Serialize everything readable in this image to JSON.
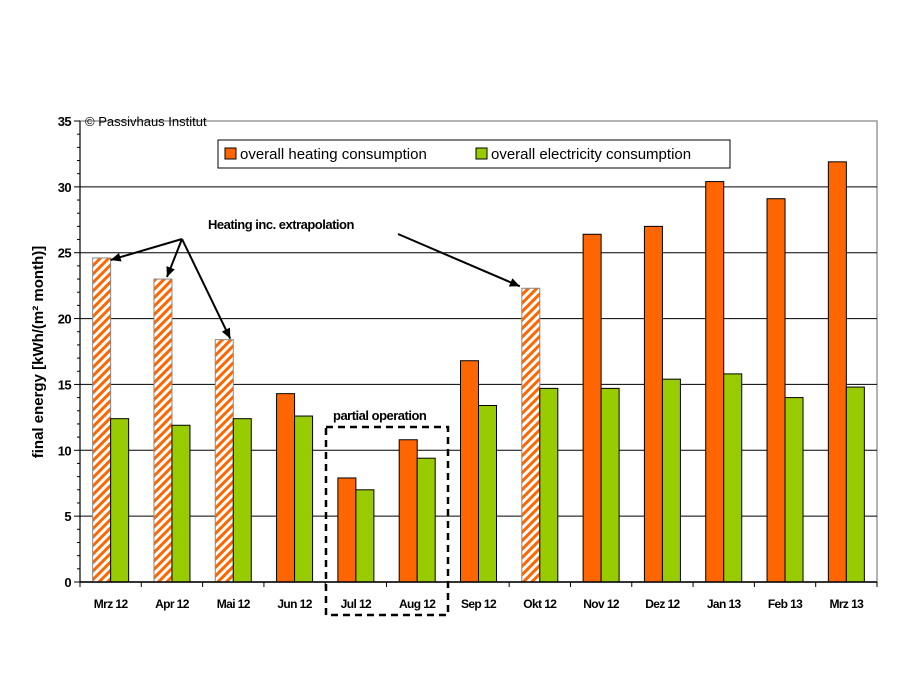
{
  "chart_data": {
    "type": "bar",
    "title": "",
    "copyright": "© Passivhaus Institut",
    "xlabel": "",
    "ylabel": "final energy [kWh/(m² month)]",
    "ylim": [
      0,
      35
    ],
    "yticks": [
      0,
      5,
      10,
      15,
      20,
      25,
      30,
      35
    ],
    "minor_tick_step": 1,
    "grid": true,
    "legend_position": "top-center",
    "categories": [
      "Mrz 12",
      "Apr 12",
      "Mai 12",
      "Jun 12",
      "Jul 12",
      "Aug 12",
      "Sep 12",
      "Okt 12",
      "Nov 12",
      "Dez 12",
      "Jan 13",
      "Feb 13",
      "Mrz 13"
    ],
    "series": [
      {
        "name": "overall heating consumption",
        "color": "#ff6600",
        "values": [
          24.6,
          23.0,
          18.4,
          14.3,
          7.9,
          10.8,
          16.8,
          22.3,
          26.4,
          27.0,
          30.4,
          29.1,
          31.9
        ],
        "extrapolated": [
          true,
          true,
          true,
          false,
          false,
          false,
          false,
          true,
          false,
          false,
          false,
          false,
          false
        ]
      },
      {
        "name": "overall electricity consumption",
        "color": "#99cc00",
        "values": [
          12.4,
          11.9,
          12.4,
          12.6,
          7.0,
          9.4,
          13.4,
          14.7,
          14.7,
          15.4,
          15.8,
          14.0,
          14.8
        ]
      }
    ],
    "annotations": [
      {
        "text": "Heating inc. extrapolation",
        "targets": [
          "Mrz 12",
          "Apr 12",
          "Mai 12",
          "Okt 12"
        ]
      },
      {
        "text": "partial operation",
        "targets": [
          "Jul 12",
          "Aug 12"
        ]
      }
    ]
  }
}
